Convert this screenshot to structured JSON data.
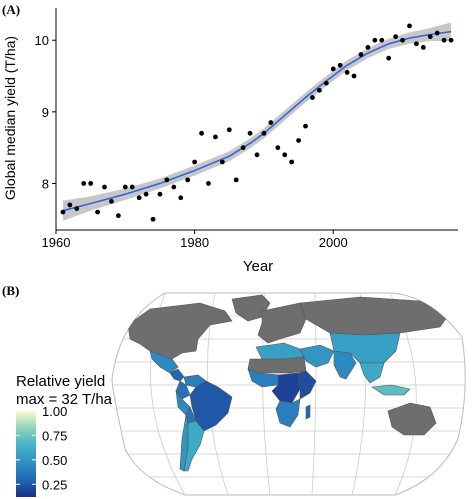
{
  "panels": {
    "a_label": "(A)",
    "b_label": "(B)"
  },
  "chart_data": [
    {
      "type": "scatter",
      "title": "",
      "xlabel": "Year",
      "ylabel": "Global median yield (T/ha)",
      "xlim": [
        1960,
        2018
      ],
      "ylim": [
        7.35,
        10.45
      ],
      "xticks": [
        1960,
        1980,
        2000
      ],
      "yticks": [
        8,
        9,
        10
      ],
      "grid": false,
      "legend": "none",
      "series": [
        {
          "style": "points",
          "color": "#000000",
          "x": [
            1961,
            1962,
            1963,
            1964,
            1965,
            1966,
            1967,
            1968,
            1969,
            1970,
            1971,
            1972,
            1973,
            1974,
            1975,
            1976,
            1977,
            1978,
            1979,
            1980,
            1981,
            1982,
            1983,
            1984,
            1985,
            1986,
            1987,
            1988,
            1989,
            1990,
            1991,
            1992,
            1993,
            1994,
            1995,
            1996,
            1997,
            1998,
            1999,
            2000,
            2001,
            2002,
            2003,
            2004,
            2005,
            2006,
            2007,
            2008,
            2009,
            2010,
            2011,
            2012,
            2013,
            2014,
            2015,
            2016,
            2017
          ],
          "y": [
            7.6,
            7.7,
            7.65,
            8.0,
            8.0,
            7.6,
            7.95,
            7.75,
            7.55,
            7.95,
            7.95,
            7.8,
            7.85,
            7.5,
            7.85,
            8.05,
            7.95,
            7.8,
            8.05,
            8.3,
            8.7,
            8.0,
            8.65,
            8.3,
            8.75,
            8.05,
            8.5,
            8.7,
            8.4,
            8.7,
            8.85,
            8.5,
            8.4,
            8.3,
            8.6,
            8.8,
            9.2,
            9.3,
            9.4,
            9.6,
            9.65,
            9.55,
            9.5,
            9.8,
            9.9,
            10.0,
            10.0,
            9.75,
            10.05,
            10.0,
            10.2,
            9.95,
            9.9,
            10.05,
            10.1,
            10.0,
            10.0
          ]
        },
        {
          "style": "smooth-fit",
          "color": "#3366dd",
          "band_color": "#bdbdbd",
          "x": [
            1961,
            1965,
            1970,
            1975,
            1980,
            1985,
            1988,
            1990,
            1993,
            1996,
            1999,
            2002,
            2005,
            2008,
            2011,
            2014,
            2017
          ],
          "y": [
            7.62,
            7.72,
            7.85,
            8.0,
            8.18,
            8.38,
            8.56,
            8.7,
            8.95,
            9.2,
            9.43,
            9.65,
            9.82,
            9.95,
            10.03,
            10.08,
            10.12
          ],
          "band": [
            0.14,
            0.1,
            0.08,
            0.07,
            0.07,
            0.07,
            0.07,
            0.07,
            0.07,
            0.07,
            0.07,
            0.07,
            0.07,
            0.07,
            0.08,
            0.09,
            0.13
          ]
        }
      ]
    },
    {
      "type": "heatmap",
      "title": "",
      "legend_title_1": "Relative yield",
      "legend_title_2": "max = 32 T/ha",
      "colorbar_ticks": [
        "1.00",
        "0.75",
        "0.50",
        "0.25"
      ],
      "colorbar_range": [
        0.12,
        1.0
      ],
      "colormap": [
        "#1a2f8a",
        "#2266b2",
        "#2f8fc2",
        "#44b4c8",
        "#8dd2bb",
        "#f7fbd4"
      ],
      "legend": "bottom-left",
      "regions": [
        {
          "name": "North America",
          "value": null,
          "color": "#6e6e6e"
        },
        {
          "name": "Greenland",
          "value": null,
          "color": "#6e6e6e"
        },
        {
          "name": "Europe",
          "value": null,
          "color": "#6e6e6e"
        },
        {
          "name": "Russia",
          "value": null,
          "color": "#6e6e6e"
        },
        {
          "name": "Australia",
          "value": null,
          "color": "#6e6e6e"
        },
        {
          "name": "Mexico",
          "value": 0.45
        },
        {
          "name": "Central America",
          "value": 0.3
        },
        {
          "name": "Colombia",
          "value": 0.35
        },
        {
          "name": "Venezuela",
          "value": 0.4
        },
        {
          "name": "Brazil",
          "value": 0.25
        },
        {
          "name": "Peru",
          "value": 0.45
        },
        {
          "name": "Bolivia",
          "value": 0.35
        },
        {
          "name": "Argentina",
          "value": 0.6
        },
        {
          "name": "Chile",
          "value": 0.5
        },
        {
          "name": "North Africa",
          "value": 0.55
        },
        {
          "name": "Sahara",
          "value": null,
          "color": "#6e6e6e"
        },
        {
          "name": "West Africa",
          "value": 0.4
        },
        {
          "name": "Central Africa",
          "value": 0.18
        },
        {
          "name": "East Africa",
          "value": 0.22
        },
        {
          "name": "Southern Africa",
          "value": 0.4
        },
        {
          "name": "Madagascar",
          "value": 0.3
        },
        {
          "name": "Middle East",
          "value": 0.5
        },
        {
          "name": "India",
          "value": 0.45
        },
        {
          "name": "China",
          "value": 0.55
        },
        {
          "name": "Southeast Asia",
          "value": 0.6
        },
        {
          "name": "Indonesia",
          "value": 0.7
        }
      ]
    }
  ]
}
